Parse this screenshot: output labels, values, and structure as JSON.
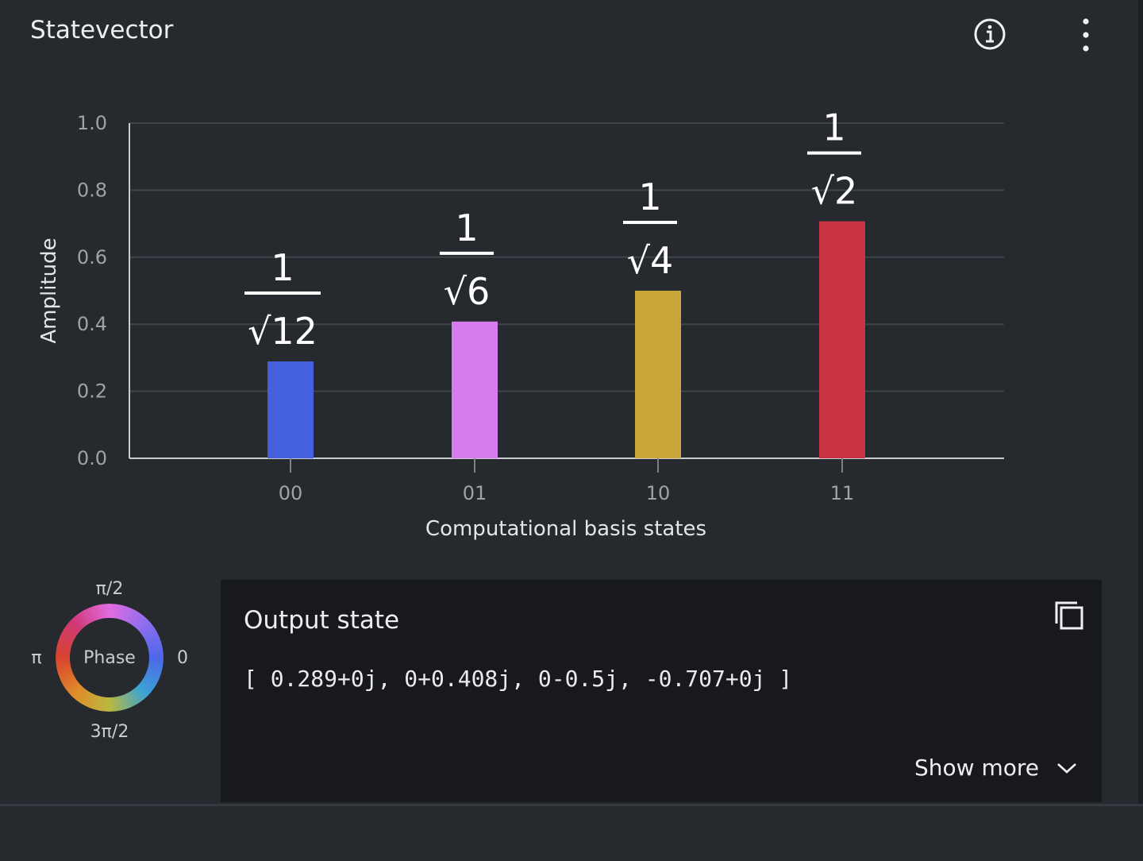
{
  "header": {
    "title": "Statevector",
    "info_icon": "info-icon",
    "more_icon": "overflow-menu-icon"
  },
  "chart_data": {
    "type": "bar",
    "xlabel": "Computational basis states",
    "ylabel": "Amplitude",
    "ylim": [
      0,
      1.0
    ],
    "yticks": [
      "0.0",
      "0.2",
      "0.4",
      "0.6",
      "0.8",
      "1.0"
    ],
    "grid": true,
    "categories": [
      "00",
      "01",
      "10",
      "11"
    ],
    "values": [
      0.289,
      0.408,
      0.5,
      0.707
    ],
    "colors": [
      "#4560dc",
      "#d67ced",
      "#c9a53a",
      "#c93444"
    ],
    "annotations": [
      {
        "numerator": "1",
        "denominator": "√12"
      },
      {
        "numerator": "1",
        "denominator": "√6"
      },
      {
        "numerator": "1",
        "denominator": "√4"
      },
      {
        "numerator": "1",
        "denominator": "√2"
      }
    ]
  },
  "phase_wheel": {
    "center_label": "Phase",
    "top": "π/2",
    "left": "π",
    "right": "0",
    "bottom": "3π/2"
  },
  "output": {
    "title": "Output state",
    "state": "[ 0.289+0j, 0+0.408j, 0-0.5j, -0.707+0j ]",
    "copy_icon": "copy-icon",
    "show_more": "Show more",
    "chevron_icon": "chevron-down-icon"
  }
}
